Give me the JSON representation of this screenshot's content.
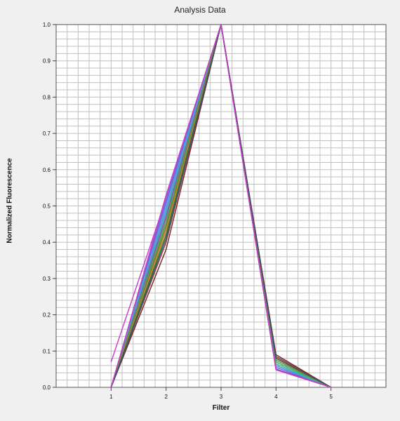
{
  "chart_data": {
    "type": "line",
    "title": "Analysis Data",
    "xlabel": "Filter",
    "ylabel": "Normalized Fluorescence",
    "x": [
      1,
      2,
      3,
      4,
      5
    ],
    "xlim": [
      0,
      6
    ],
    "ylim": [
      0,
      1
    ],
    "x_ticks": [
      "1",
      "2",
      "3",
      "4",
      "5"
    ],
    "y_ticks": [
      "0.0",
      "0.1",
      "0.2",
      "0.3",
      "0.4",
      "0.5",
      "0.6",
      "0.7",
      "0.8",
      "0.9",
      "1.0"
    ],
    "grid": true,
    "series": [
      {
        "color": "#cc44cc",
        "values": [
          0.07,
          0.52,
          1.0,
          0.05,
          0.0
        ]
      },
      {
        "color": "#7a62d8",
        "values": [
          0.0,
          0.52,
          1.0,
          0.05,
          0.0
        ]
      },
      {
        "color": "#5b6fe0",
        "values": [
          0.0,
          0.51,
          1.0,
          0.055,
          0.0
        ]
      },
      {
        "color": "#6f8fe8",
        "values": [
          0.0,
          0.5,
          1.0,
          0.06,
          0.0
        ]
      },
      {
        "color": "#4a9fd0",
        "values": [
          0.0,
          0.49,
          1.0,
          0.06,
          0.0
        ]
      },
      {
        "color": "#3fb39a",
        "values": [
          0.0,
          0.48,
          1.0,
          0.065,
          0.0
        ]
      },
      {
        "color": "#a040c0",
        "values": [
          0.0,
          0.47,
          1.0,
          0.05,
          0.0
        ]
      },
      {
        "color": "#48a860",
        "values": [
          0.0,
          0.46,
          1.0,
          0.07,
          0.0
        ]
      },
      {
        "color": "#6a8f3a",
        "values": [
          0.0,
          0.45,
          1.0,
          0.075,
          0.0
        ]
      },
      {
        "color": "#8a7a30",
        "values": [
          0.0,
          0.44,
          1.0,
          0.08,
          0.0
        ]
      },
      {
        "color": "#d08a30",
        "values": [
          0.0,
          0.43,
          1.0,
          0.08,
          0.0
        ]
      },
      {
        "color": "#2e7a4a",
        "values": [
          0.0,
          0.42,
          1.0,
          0.085,
          0.0
        ]
      },
      {
        "color": "#a03a3a",
        "values": [
          0.0,
          0.4,
          1.0,
          0.085,
          0.0
        ]
      },
      {
        "color": "#703030",
        "values": [
          0.0,
          0.38,
          1.0,
          0.09,
          0.0
        ]
      },
      {
        "color": "#3a5a6a",
        "values": [
          0.0,
          0.41,
          1.0,
          0.08,
          0.0
        ]
      },
      {
        "color": "#c840c8",
        "values": [
          0.0,
          0.53,
          1.0,
          0.048,
          0.0
        ]
      }
    ]
  }
}
